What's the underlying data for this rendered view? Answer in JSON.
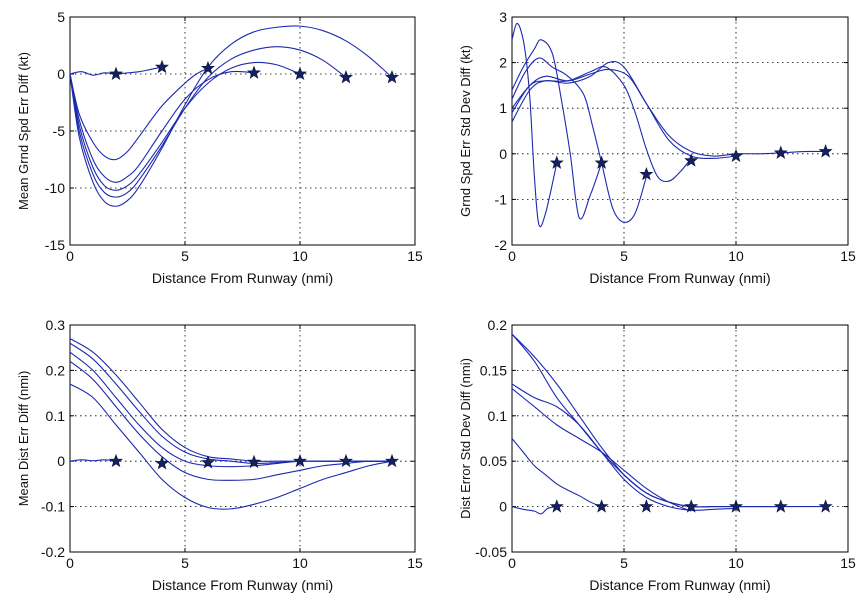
{
  "chart_data": [
    {
      "type": "line",
      "xlabel": "Distance From Runway (nmi)",
      "ylabel": "Mean Grnd Spd Err Diff (kt)",
      "xlim": [
        0,
        15
      ],
      "ylim": [
        -15,
        5
      ],
      "xticks": [
        0,
        5,
        10,
        15
      ],
      "yticks": [
        -15,
        -10,
        -5,
        0,
        5
      ],
      "grid": true,
      "series": [
        {
          "x": [
            0,
            0.5,
            1,
            1.5,
            2,
            2.5,
            3,
            3.5,
            4
          ],
          "y": [
            0,
            0.2,
            -0.1,
            0.1,
            0,
            0.1,
            0.2,
            0.4,
            0.6
          ]
        },
        {
          "x": [
            0,
            0.4,
            1,
            1.5,
            2,
            2.5,
            3,
            4,
            5,
            5.5,
            6
          ],
          "y": [
            0,
            -3.5,
            -6,
            -7.2,
            -7.5,
            -6.8,
            -5.5,
            -2.8,
            -0.8,
            0,
            0.5
          ]
        },
        {
          "x": [
            0,
            0.4,
            1,
            1.5,
            2,
            2.5,
            3,
            4,
            5,
            6,
            7,
            8
          ],
          "y": [
            0,
            -4,
            -7.5,
            -9,
            -9.5,
            -9,
            -8,
            -5,
            -2.2,
            -0.5,
            0.2,
            0.1
          ]
        },
        {
          "x": [
            0,
            0.4,
            1,
            1.5,
            2,
            2.5,
            3,
            4,
            5,
            6,
            7,
            8,
            9,
            10
          ],
          "y": [
            0,
            -4.5,
            -8.2,
            -9.8,
            -10.2,
            -9.8,
            -8.8,
            -6,
            -3,
            -0.8,
            0.5,
            1,
            0.8,
            0
          ]
        },
        {
          "x": [
            0,
            0.4,
            1,
            1.5,
            2,
            2.5,
            3,
            4,
            5,
            6,
            7,
            8,
            9,
            10,
            11,
            12
          ],
          "y": [
            0,
            -5,
            -8.8,
            -10.4,
            -10.8,
            -10.4,
            -9.3,
            -6.3,
            -3,
            -0.3,
            1.3,
            2.1,
            2.4,
            2.1,
            1.2,
            -0.3
          ]
        },
        {
          "x": [
            0,
            0.4,
            1,
            1.5,
            2,
            2.5,
            3,
            4,
            5,
            6,
            7,
            8,
            9,
            10,
            11,
            12,
            13,
            14
          ],
          "y": [
            0,
            -5.5,
            -9.5,
            -11.2,
            -11.6,
            -11.1,
            -9.9,
            -6.5,
            -2.7,
            0.6,
            2.6,
            3.7,
            4.1,
            4.2,
            3.8,
            2.9,
            1.5,
            -0.3
          ]
        }
      ],
      "markers": {
        "x": [
          2,
          4,
          6,
          8,
          10,
          12,
          14
        ],
        "y": [
          0,
          0.6,
          0.5,
          0.1,
          0,
          -0.3,
          -0.3
        ]
      }
    },
    {
      "type": "line",
      "xlabel": "Distance From Runway (nmi)",
      "ylabel": "Grnd Spd Err Std Dev Diff (kt)",
      "xlim": [
        0,
        15
      ],
      "ylim": [
        -2,
        3
      ],
      "xticks": [
        0,
        5,
        10,
        15
      ],
      "yticks": [
        -2,
        -1,
        0,
        1,
        2,
        3
      ],
      "grid": true,
      "series": [
        {
          "x": [
            0,
            0.2,
            0.4,
            0.6,
            0.8,
            1,
            1.2,
            1.5,
            2
          ],
          "y": [
            2.5,
            2.85,
            2.7,
            2.2,
            1.2,
            -0.5,
            -1.55,
            -1.3,
            -0.2
          ]
        },
        {
          "x": [
            0,
            0.5,
            1,
            1.3,
            1.8,
            2.2,
            2.6,
            3,
            3.5,
            4
          ],
          "y": [
            1.4,
            1.9,
            2.3,
            2.5,
            2.2,
            1.2,
            0,
            -1.4,
            -0.9,
            -0.2
          ]
        },
        {
          "x": [
            0,
            0.6,
            1.2,
            1.8,
            2.5,
            3.2,
            3.6,
            4,
            4.5,
            5,
            5.5,
            6
          ],
          "y": [
            1.2,
            1.8,
            2.1,
            1.9,
            1.7,
            1.3,
            0.6,
            -0.2,
            -1.2,
            -1.5,
            -1.3,
            -0.5
          ]
        },
        {
          "x": [
            0,
            0.8,
            1.5,
            2.5,
            3.5,
            4.2,
            5,
            5.5,
            6,
            6.5,
            7,
            7.5,
            8
          ],
          "y": [
            0.9,
            1.5,
            1.6,
            1.6,
            1.8,
            1.9,
            1.5,
            0.9,
            0.1,
            -0.5,
            -0.6,
            -0.4,
            -0.1
          ]
        },
        {
          "x": [
            0,
            0.8,
            1.5,
            2.5,
            3.5,
            4.3,
            5,
            6,
            7,
            8,
            9,
            10
          ],
          "y": [
            0.7,
            1.4,
            1.6,
            1.55,
            1.7,
            2.0,
            1.9,
            1.1,
            0.3,
            -0.05,
            -0.1,
            -0.05
          ]
        },
        {
          "x": [
            0,
            0.8,
            1.5,
            2.5,
            3.5,
            4.3,
            5.2,
            6,
            7,
            8,
            9,
            10,
            11,
            12,
            13,
            14
          ],
          "y": [
            1.0,
            1.5,
            1.7,
            1.6,
            1.75,
            1.85,
            1.7,
            1.1,
            0.4,
            0.05,
            -0.05,
            0,
            0,
            0.02,
            0.05,
            0.05
          ]
        }
      ],
      "markers": {
        "x": [
          2,
          4,
          6,
          8,
          10,
          12,
          14
        ],
        "y": [
          -0.2,
          -0.2,
          -0.45,
          -0.15,
          -0.05,
          0.02,
          0.05
        ]
      }
    },
    {
      "type": "line",
      "xlabel": "Distance From Runway (nmi)",
      "ylabel": "Mean Dist Err Diff (nmi)",
      "xlim": [
        0,
        15
      ],
      "ylim": [
        -0.2,
        0.3
      ],
      "xticks": [
        0,
        5,
        10,
        15
      ],
      "yticks": [
        -0.2,
        -0.1,
        0,
        0.1,
        0.2,
        0.3
      ],
      "grid": true,
      "series": [
        {
          "x": [
            0,
            0.5,
            1,
            1.5,
            2
          ],
          "y": [
            0,
            0.003,
            0.001,
            0.003,
            0
          ]
        },
        {
          "x": [
            0,
            1,
            2,
            3,
            4,
            5,
            6,
            7,
            8,
            9,
            10,
            11,
            12,
            13,
            14
          ],
          "y": [
            0.17,
            0.14,
            0.08,
            0.02,
            -0.04,
            -0.08,
            -0.102,
            -0.105,
            -0.095,
            -0.08,
            -0.06,
            -0.04,
            -0.025,
            -0.01,
            0
          ]
        },
        {
          "x": [
            0,
            1,
            2,
            3,
            4,
            5,
            6,
            7,
            8,
            9,
            10,
            11,
            12,
            13,
            14
          ],
          "y": [
            0.22,
            0.18,
            0.12,
            0.06,
            0.01,
            -0.025,
            -0.04,
            -0.042,
            -0.04,
            -0.03,
            -0.02,
            -0.01,
            -0.005,
            0,
            0
          ]
        },
        {
          "x": [
            0,
            1,
            2,
            3,
            4,
            5,
            6,
            7,
            8,
            9,
            10,
            11,
            12,
            13,
            14
          ],
          "y": [
            0.24,
            0.2,
            0.14,
            0.08,
            0.03,
            0,
            -0.01,
            -0.012,
            -0.01,
            -0.005,
            0,
            0,
            0,
            0,
            0
          ]
        },
        {
          "x": [
            0,
            1,
            2,
            3,
            4,
            5,
            6,
            7,
            8,
            9,
            10,
            11,
            12,
            13,
            14
          ],
          "y": [
            0.26,
            0.225,
            0.17,
            0.11,
            0.055,
            0.02,
            0.005,
            0,
            -0.005,
            -0.003,
            0,
            0,
            0,
            0,
            0
          ]
        },
        {
          "x": [
            0,
            1,
            2,
            3,
            4,
            5,
            6,
            7,
            8,
            9,
            10,
            11,
            12,
            13,
            14
          ],
          "y": [
            0.27,
            0.24,
            0.19,
            0.13,
            0.07,
            0.03,
            0.01,
            0.005,
            0,
            0,
            0,
            0,
            0,
            0,
            0
          ]
        }
      ],
      "markers": {
        "x": [
          2,
          4,
          6,
          8,
          10,
          12,
          14
        ],
        "y": [
          0,
          -0.005,
          -0.003,
          -0.002,
          0,
          0,
          0
        ]
      }
    },
    {
      "type": "line",
      "xlabel": "Distance From Runway (nmi)",
      "ylabel": "Dist Error Std Dev Diff (nmi)",
      "xlim": [
        0,
        15
      ],
      "ylim": [
        -0.05,
        0.2
      ],
      "xticks": [
        0,
        5,
        10,
        15
      ],
      "yticks": [
        -0.05,
        0,
        0.05,
        0.1,
        0.15,
        0.2
      ],
      "grid": true,
      "series": [
        {
          "x": [
            0,
            0.5,
            1,
            1.3,
            1.6,
            2
          ],
          "y": [
            0,
            -0.003,
            -0.005,
            -0.008,
            -0.002,
            0
          ]
        },
        {
          "x": [
            0,
            0.5,
            1,
            1.5,
            2,
            2.5,
            3,
            3.5,
            4
          ],
          "y": [
            0.075,
            0.06,
            0.045,
            0.035,
            0.025,
            0.018,
            0.012,
            0.005,
            0
          ]
        },
        {
          "x": [
            0,
            1,
            2,
            3,
            4,
            5,
            6,
            7,
            8
          ],
          "y": [
            0.13,
            0.11,
            0.09,
            0.075,
            0.06,
            0.04,
            0.02,
            0.005,
            -0.005
          ]
        },
        {
          "x": [
            0,
            1,
            2,
            3,
            4,
            5,
            6,
            7,
            8,
            9,
            10
          ],
          "y": [
            0.135,
            0.12,
            0.11,
            0.09,
            0.06,
            0.03,
            0.01,
            0,
            -0.004,
            -0.003,
            -0.002
          ]
        },
        {
          "x": [
            0,
            1,
            2,
            3,
            4,
            5,
            6,
            7,
            8,
            9,
            10,
            11,
            12
          ],
          "y": [
            0.19,
            0.16,
            0.12,
            0.09,
            0.06,
            0.035,
            0.015,
            0.005,
            0,
            0,
            0,
            0,
            0
          ]
        },
        {
          "x": [
            0,
            1,
            2,
            3,
            4,
            5,
            6,
            7,
            8,
            9,
            10,
            11,
            12,
            13,
            14
          ],
          "y": [
            0.19,
            0.165,
            0.135,
            0.1,
            0.065,
            0.035,
            0.015,
            0.005,
            0,
            0,
            0,
            0,
            0,
            0,
            0
          ]
        }
      ],
      "markers": {
        "x": [
          2,
          4,
          6,
          8,
          10,
          12,
          14
        ],
        "y": [
          0,
          0,
          0,
          0,
          0,
          0,
          0
        ]
      }
    }
  ]
}
